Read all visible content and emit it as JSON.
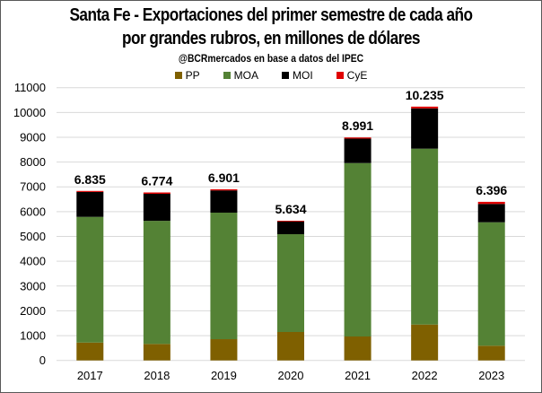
{
  "chart_data": {
    "type": "bar",
    "stacked": true,
    "title": "Santa Fe - Exportaciones del primer semestre de cada año",
    "title_line2": "por grandes rubros, en millones de dólares",
    "subtitle": "@BCRmercados en base a datos del IPEC",
    "xlabel": "",
    "ylabel": "",
    "ylim": [
      0,
      11000
    ],
    "yticks": [
      0,
      1000,
      2000,
      3000,
      4000,
      5000,
      6000,
      7000,
      8000,
      9000,
      10000,
      11000
    ],
    "grid": true,
    "legend_position": "top",
    "categories": [
      "2017",
      "2018",
      "2019",
      "2020",
      "2021",
      "2022",
      "2023"
    ],
    "series": [
      {
        "name": "PP",
        "color": "#7F6000",
        "values": [
          720,
          665,
          857,
          1147,
          966,
          1447,
          593
        ]
      },
      {
        "name": "MOA",
        "color": "#548235",
        "values": [
          5070,
          4965,
          5103,
          3943,
          6994,
          7093,
          4979
        ]
      },
      {
        "name": "MOI",
        "color": "#000000",
        "values": [
          1005,
          1089,
          896,
          519,
          986,
          1625,
          739
        ]
      },
      {
        "name": "CyE",
        "color": "#E00000",
        "values": [
          40,
          55,
          45,
          25,
          45,
          70,
          85
        ]
      }
    ],
    "totals": [
      6835,
      6774,
      6901,
      5634,
      8991,
      10235,
      6396
    ],
    "total_labels": [
      "6.835",
      "6.774",
      "6.901",
      "5.634",
      "8.991",
      "10.235",
      "6.396"
    ]
  }
}
